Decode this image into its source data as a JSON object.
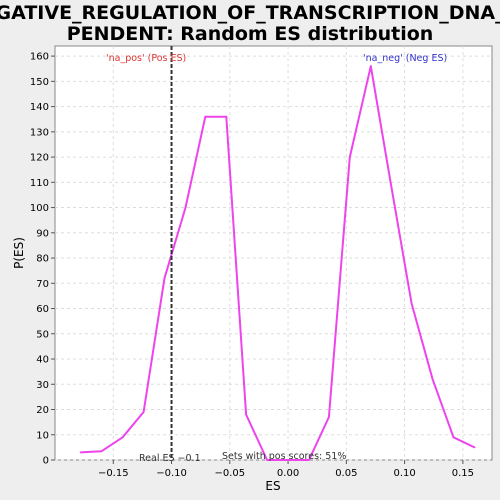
{
  "chart_data": {
    "type": "line",
    "title_line1": "NEGATIVE_REGULATION_OF_TRANSCRIPTION_DNA_DE",
    "title_line2": "PENDENT: Random ES distribution",
    "xlabel": "ES",
    "ylabel": "P(ES)",
    "xlim": [
      -0.2,
      0.175
    ],
    "ylim": [
      0,
      164
    ],
    "xticks": [
      -0.15,
      -0.1,
      -0.05,
      0.0,
      0.05,
      0.1,
      0.15
    ],
    "xtick_labels": [
      "−0.15",
      "−0.10",
      "−0.05",
      "0.00",
      "0.05",
      "0.10",
      "0.15"
    ],
    "yticks": [
      0,
      10,
      20,
      30,
      40,
      50,
      60,
      70,
      80,
      90,
      100,
      110,
      120,
      130,
      140,
      150,
      160
    ],
    "ytick_labels": [
      "0",
      "10",
      "20",
      "30",
      "40",
      "50",
      "60",
      "70",
      "80",
      "90",
      "100",
      "110",
      "120",
      "130",
      "140",
      "150",
      "160"
    ],
    "grid": true,
    "series": [
      {
        "color": "#ee44ee",
        "x": [
          -0.178,
          -0.16,
          -0.142,
          -0.124,
          -0.106,
          -0.088,
          -0.071,
          -0.053,
          -0.036,
          -0.018,
          0.0,
          0.018,
          0.035,
          0.053,
          0.071,
          0.088,
          0.106,
          0.124,
          0.142,
          0.16
        ],
        "y": [
          3,
          3.5,
          9,
          19,
          72,
          100,
          136,
          136,
          18,
          0,
          0,
          0,
          17,
          120,
          156,
          110,
          62,
          32,
          9,
          5
        ]
      }
    ],
    "real_es": -0.1,
    "real_es_label": "Real ES −0.1",
    "pos_label": "'na_pos' (Pos ES)",
    "neg_label": "'na_neg' (Neg ES)",
    "sets_label": "Sets with pos scores: 51%",
    "colors": {
      "curve": "#ee44ee",
      "pos_label": "#dd3333",
      "neg_label": "#3333cc",
      "grid": "#dddddd",
      "plot_bg": "#ffffff",
      "page_bg": "#eeeeee"
    }
  }
}
